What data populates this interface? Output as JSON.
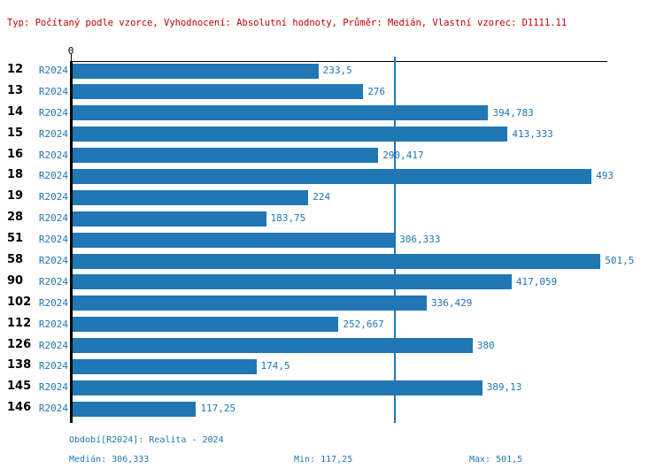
{
  "header": {
    "text": "Typ: Počítaný podle vzorce, Vyhodnocení: Absolutní hodnoty, Průměr: Medián, Vlastní vzorec: D1111.11"
  },
  "colors": {
    "bar": "#2077b4",
    "accent_text": "#1f77b4",
    "header_text": "#c00000",
    "axis": "#000000"
  },
  "chart_data": {
    "type": "bar",
    "orientation": "horizontal",
    "title": "",
    "categories": [
      "12",
      "13",
      "14",
      "15",
      "16",
      "18",
      "19",
      "28",
      "51",
      "58",
      "90",
      "102",
      "112",
      "126",
      "138",
      "145",
      "146"
    ],
    "series": [
      {
        "name": "R2024",
        "values": [
          233.5,
          276,
          394.783,
          413.333,
          290.417,
          493,
          224,
          183.75,
          306.333,
          501.5,
          417.059,
          336.429,
          252.667,
          380,
          174.5,
          389.13,
          117.25
        ]
      }
    ],
    "value_labels": [
      "233,5",
      "276",
      "394,783",
      "413,333",
      "290,417",
      "493",
      "224",
      "183,75",
      "306,333",
      "501,5",
      "417,059",
      "336,429",
      "252,667",
      "380",
      "174,5",
      "389,13",
      "117,25"
    ],
    "zero_tick_label": "0",
    "median": 306.333,
    "min": 117.25,
    "max": 501.5,
    "xlim": [
      0,
      508
    ],
    "grid": false,
    "median_line": true,
    "legend_position": "none"
  },
  "footer": {
    "period_label": "Období[R2024]: Realita - 2024",
    "median_label": "Medián: 306,333",
    "min_label": "Min: 117,25",
    "max_label": "Max: 501,5"
  }
}
